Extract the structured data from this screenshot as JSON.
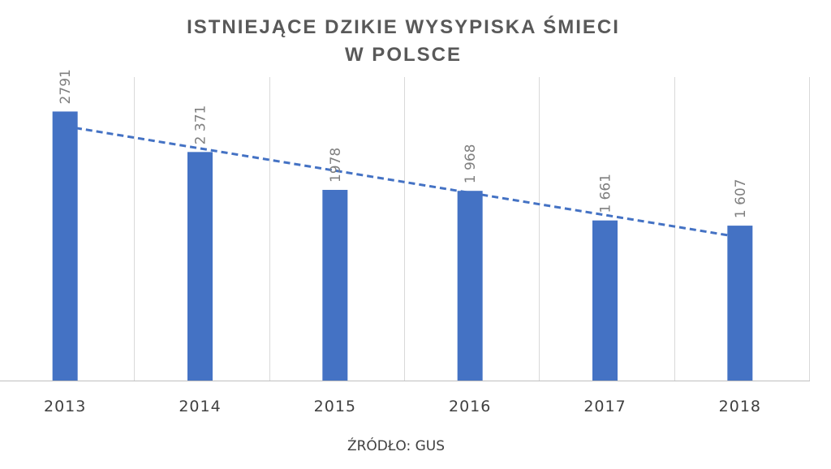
{
  "chart_data": {
    "type": "bar",
    "title": [
      "ISTNIEJĄCE DZIKIE WYSYPISKA ŚMIECI",
      "W POLSCE"
    ],
    "xlabel": "ŹRÓDŁO: GUS",
    "ylabel": "",
    "categories": [
      "2013",
      "2014",
      "2015",
      "2016",
      "2017",
      "2018"
    ],
    "values": [
      2791,
      2371,
      1978,
      1968,
      1661,
      1607
    ],
    "value_labels": [
      "2791",
      "2 371",
      "1978",
      "1 968",
      "1 661",
      "1 607"
    ],
    "ylim": [
      0,
      2800
    ],
    "trendline": "linear",
    "grid": "vertical",
    "colors": {
      "bar": "#4472c4",
      "trend": "#4472c4",
      "grid": "#d9d9d9",
      "axis": "#bfbfbf"
    }
  }
}
